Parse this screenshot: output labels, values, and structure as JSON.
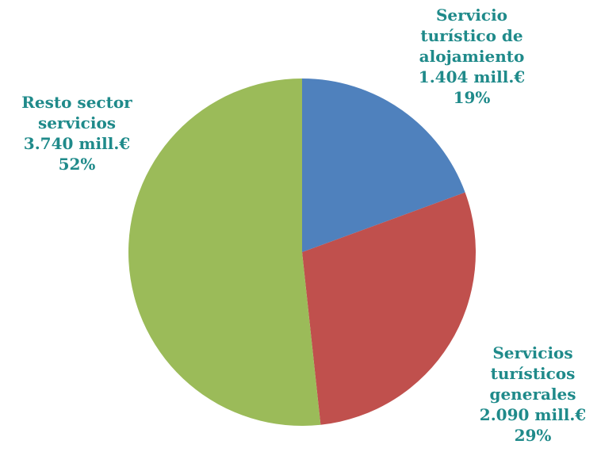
{
  "chart_data": {
    "type": "pie",
    "slices": [
      {
        "name_lines": [
          "Servicio",
          "turístico de",
          "alojamiento"
        ],
        "value": 1404,
        "value_label": "1.404 mill.€",
        "percent_label": "19%",
        "color": "#4f81bd"
      },
      {
        "name_lines": [
          "Servicios",
          "turísticos",
          "generales"
        ],
        "value": 2090,
        "value_label": "2.090 mill.€",
        "percent_label": "29%",
        "color": "#c0504d"
      },
      {
        "name_lines": [
          "Resto sector",
          "servicios"
        ],
        "value": 3740,
        "value_label": "3.740 mill.€",
        "percent_label": "52%",
        "color": "#9bbb59"
      }
    ],
    "start_angle": "12 o'clock",
    "direction": "clockwise",
    "label_color": "#1f8a8a",
    "legend": "none"
  }
}
